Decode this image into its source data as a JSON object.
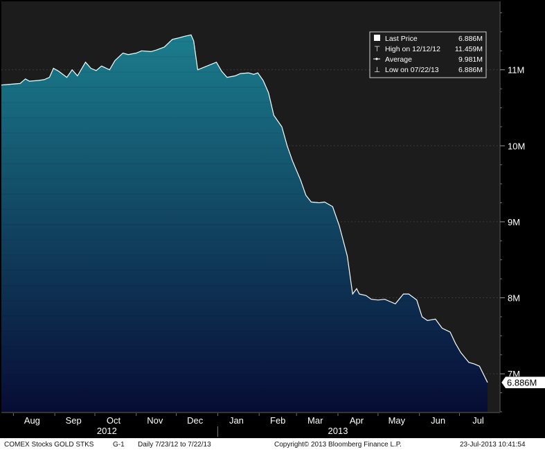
{
  "chart_data": {
    "type": "area",
    "x": [
      "2012-07-23",
      "2012-07-30",
      "2012-08-06",
      "2012-08-10",
      "2012-08-13",
      "2012-08-20",
      "2012-08-24",
      "2012-08-28",
      "2012-08-31",
      "2012-09-04",
      "2012-09-10",
      "2012-09-14",
      "2012-09-18",
      "2012-09-24",
      "2012-09-28",
      "2012-10-02",
      "2012-10-06",
      "2012-10-12",
      "2012-10-16",
      "2012-10-22",
      "2012-10-26",
      "2012-11-01",
      "2012-11-05",
      "2012-11-12",
      "2012-11-16",
      "2012-11-22",
      "2012-11-28",
      "2012-12-03",
      "2012-12-07",
      "2012-12-12",
      "2012-12-14",
      "2012-12-17",
      "2012-12-24",
      "2012-12-31",
      "2013-01-04",
      "2013-01-08",
      "2013-01-14",
      "2013-01-18",
      "2013-01-24",
      "2013-01-28",
      "2013-01-31",
      "2013-02-04",
      "2013-02-08",
      "2013-02-12",
      "2013-02-18",
      "2013-02-22",
      "2013-02-26",
      "2013-03-04",
      "2013-03-08",
      "2013-03-12",
      "2013-03-18",
      "2013-03-22",
      "2013-03-28",
      "2013-04-02",
      "2013-04-08",
      "2013-04-12",
      "2013-04-15",
      "2013-04-17",
      "2013-04-22",
      "2013-04-26",
      "2013-05-01",
      "2013-05-06",
      "2013-05-10",
      "2013-05-14",
      "2013-05-20",
      "2013-05-24",
      "2013-05-30",
      "2013-06-03",
      "2013-06-07",
      "2013-06-13",
      "2013-06-18",
      "2013-06-24",
      "2013-06-28",
      "2013-07-02",
      "2013-07-08",
      "2013-07-12",
      "2013-07-16",
      "2013-07-22"
    ],
    "series": [
      {
        "values": [
          10.8,
          10.81,
          10.82,
          10.88,
          10.85,
          10.86,
          10.87,
          10.9,
          11.02,
          10.98,
          10.9,
          11.0,
          10.92,
          11.1,
          11.02,
          10.99,
          11.05,
          11.0,
          11.12,
          11.22,
          11.2,
          11.22,
          11.25,
          11.24,
          11.26,
          11.3,
          11.4,
          11.42,
          11.44,
          11.459,
          11.38,
          11.0,
          11.05,
          11.1,
          10.98,
          10.9,
          10.92,
          10.95,
          10.96,
          10.94,
          10.96,
          10.86,
          10.7,
          10.4,
          10.25,
          10.0,
          9.8,
          9.55,
          9.35,
          9.26,
          9.25,
          9.26,
          9.2,
          8.95,
          8.55,
          8.05,
          8.12,
          8.05,
          8.03,
          7.98,
          7.97,
          7.98,
          7.95,
          7.92,
          8.05,
          8.05,
          7.97,
          7.75,
          7.7,
          7.72,
          7.6,
          7.55,
          7.4,
          7.28,
          7.15,
          7.13,
          7.1,
          6.886
        ]
      }
    ],
    "ylim": [
      6.5,
      11.9
    ],
    "yticks": [
      7,
      8,
      9,
      10,
      11
    ],
    "ytick_labels": [
      "7M",
      "8M",
      "9M",
      "10M",
      "11M"
    ],
    "months": [
      {
        "label": "Aug",
        "date": "2012-08-15"
      },
      {
        "label": "Sep",
        "date": "2012-09-15"
      },
      {
        "label": "Oct",
        "date": "2012-10-15"
      },
      {
        "label": "Nov",
        "date": "2012-11-15"
      },
      {
        "label": "Dec",
        "date": "2012-12-15"
      },
      {
        "label": "Jan",
        "date": "2013-01-15"
      },
      {
        "label": "Feb",
        "date": "2013-02-15"
      },
      {
        "label": "Mar",
        "date": "2013-03-15"
      },
      {
        "label": "Apr",
        "date": "2013-04-15"
      },
      {
        "label": "May",
        "date": "2013-05-15"
      },
      {
        "label": "Jun",
        "date": "2013-06-15"
      },
      {
        "label": "Jul",
        "date": "2013-07-15"
      }
    ],
    "years": [
      {
        "label": "2012",
        "date": "2012-10-10"
      },
      {
        "label": "2013",
        "date": "2013-04-01"
      }
    ],
    "year_divider_date": "2013-01-01",
    "last_value_label": "6.886M",
    "legend": {
      "placement": "top-right",
      "rows": [
        {
          "label": "Last Price",
          "value": "6.886M"
        },
        {
          "label": "High on 12/12/12",
          "value": "11.459M"
        },
        {
          "label": "Average",
          "value": "9.981M"
        },
        {
          "label": "Low on 07/22/13",
          "value": "6.886M"
        }
      ]
    },
    "grid": true
  },
  "colors": {
    "plot_background": "#1c1c1c",
    "area_top": "#1b7d8d",
    "area_bottom": "#070c35",
    "line": "#ffffff",
    "axis_background": "#000000",
    "text": "#ffffff"
  },
  "footer": {
    "security": "COMEX Stocks  GOLD STKS",
    "chart_id": "G-1",
    "range": "Daily  7/23/12 to 7/22/13",
    "copyright": "Copyright© 2013 Bloomberg Finance L.P.",
    "timestamp": "23-Jul-2013 10:41:54"
  }
}
